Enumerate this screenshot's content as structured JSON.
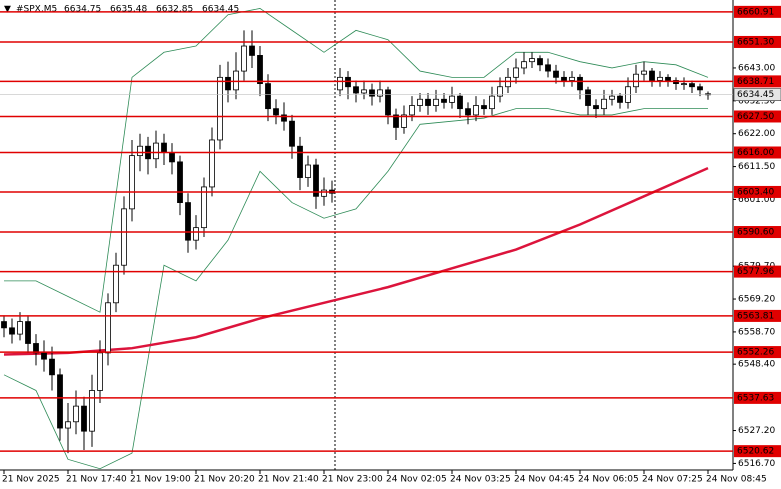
{
  "chart_data": {
    "type": "candlestick",
    "symbol": "#SPX,M5",
    "ohlc": [
      6634.75,
      6635.48,
      6632.85,
      6634.45
    ],
    "ylim": [
      6514.6,
      6664.7
    ],
    "yticks": [
      {
        "value": 6643,
        "label": "6643.00"
      },
      {
        "value": 6632.5,
        "label": "6632.50"
      },
      {
        "value": 6622,
        "label": "6622.00"
      },
      {
        "value": 6611.5,
        "label": "6611.50"
      },
      {
        "value": 6601,
        "label": "6601.00"
      },
      {
        "value": 6579.7,
        "label": "6579.70"
      },
      {
        "value": 6569.2,
        "label": "6569.20"
      },
      {
        "value": 6558.7,
        "label": "6558.70"
      },
      {
        "value": 6548.4,
        "label": "6548.40"
      },
      {
        "value": 6527.2,
        "label": "6527.20"
      },
      {
        "value": 6516.7,
        "label": "6516.70"
      }
    ],
    "levels": [
      {
        "value": 6660.91,
        "label": "6660.91"
      },
      {
        "value": 6651.3,
        "label": "6651.30"
      },
      {
        "value": 6638.71,
        "label": "6638.71"
      },
      {
        "value": 6627.5,
        "label": "6627.50"
      },
      {
        "value": 6616,
        "label": "6616.00"
      },
      {
        "value": 6603.4,
        "label": "6603.40"
      },
      {
        "value": 6590.6,
        "label": "6590.60"
      },
      {
        "value": 6577.96,
        "label": "6577.96"
      },
      {
        "value": 6563.81,
        "label": "6563.81"
      },
      {
        "value": 6552.26,
        "label": "6552.26"
      },
      {
        "value": 6537.63,
        "label": "6537.63"
      },
      {
        "value": 6520.62,
        "label": "6520.62"
      }
    ],
    "level_color": "#e00000",
    "x_labels": [
      "21 Nov 2025",
      "21 Nov 17:40",
      "21 Nov 19:00",
      "21 Nov 20:20",
      "21 Nov 21:40",
      "21 Nov 23:00",
      "24 Nov 02:05",
      "24 Nov 03:25",
      "24 Nov 04:45",
      "24 Nov 06:05",
      "24 Nov 07:25",
      "24 Nov 08:45"
    ],
    "candles": [
      [
        6562,
        6564,
        6557,
        6560
      ],
      [
        6560,
        6563,
        6555,
        6558
      ],
      [
        6558,
        6565,
        6556,
        6562
      ],
      [
        6562,
        6564,
        6552,
        6555
      ],
      [
        6555,
        6558,
        6548,
        6552
      ],
      [
        6552,
        6556,
        6546,
        6550
      ],
      [
        6550,
        6554,
        6540,
        6545
      ],
      [
        6545,
        6547,
        6524,
        6528
      ],
      [
        6528,
        6536,
        6520,
        6530
      ],
      [
        6530,
        6540,
        6526,
        6535
      ],
      [
        6535,
        6538,
        6521,
        6527
      ],
      [
        6527,
        6545,
        6522,
        6540
      ],
      [
        6540,
        6556,
        6536,
        6552
      ],
      [
        6552,
        6571,
        6548,
        6568
      ],
      [
        6568,
        6584,
        6565,
        6580
      ],
      [
        6580,
        6602,
        6577,
        6598
      ],
      [
        6598,
        6620,
        6594,
        6615
      ],
      [
        6615,
        6622,
        6610,
        6618
      ],
      [
        6618,
        6621,
        6609,
        6614
      ],
      [
        6614,
        6623,
        6611,
        6619
      ],
      [
        6619,
        6622,
        6612,
        6616
      ],
      [
        6616,
        6619,
        6609,
        6613
      ],
      [
        6613,
        6615,
        6596,
        6600
      ],
      [
        6600,
        6603,
        6584,
        6588
      ],
      [
        6588,
        6596,
        6585,
        6592
      ],
      [
        6592,
        6608,
        6589,
        6605
      ],
      [
        6605,
        6624,
        6602,
        6620
      ],
      [
        6620,
        6644,
        6617,
        6640
      ],
      [
        6640,
        6645,
        6632,
        6636
      ],
      [
        6636,
        6648,
        6633,
        6642
      ],
      [
        6642,
        6655,
        6639,
        6650
      ],
      [
        6650,
        6655,
        6643,
        6647
      ],
      [
        6647,
        6650,
        6634,
        6638
      ],
      [
        6638,
        6641,
        6626,
        6630
      ],
      [
        6630,
        6633,
        6625,
        6628
      ],
      [
        6628,
        6632,
        6623,
        6626
      ],
      [
        6626,
        6628,
        6614,
        6618
      ],
      [
        6618,
        6621,
        6604,
        6608
      ],
      [
        6608,
        6615,
        6605,
        6612
      ],
      [
        6612,
        6614,
        6598,
        6602
      ],
      [
        6602,
        6608,
        6599,
        6604
      ],
      [
        6604,
        6607,
        6600,
        6603
      ],
      [
        6636,
        6643,
        6634,
        6640
      ],
      [
        6640,
        6642,
        6633,
        6637
      ],
      [
        6637,
        6639,
        6632,
        6635
      ],
      [
        6635,
        6639,
        6633,
        6636
      ],
      [
        6636,
        6638,
        6631,
        6634
      ],
      [
        6634,
        6639,
        6632,
        6636
      ],
      [
        6636,
        6637,
        6625,
        6628
      ],
      [
        6628,
        6630,
        6620,
        6624
      ],
      [
        6624,
        6631,
        6622,
        6628
      ],
      [
        6628,
        6634,
        6626,
        6631
      ],
      [
        6631,
        6635,
        6629,
        6633
      ],
      [
        6633,
        6635,
        6628,
        6631
      ],
      [
        6631,
        6636,
        6629,
        6633
      ],
      [
        6633,
        6635,
        6630,
        6632
      ],
      [
        6632,
        6637,
        6630,
        6634
      ],
      [
        6634,
        6635,
        6627,
        6630
      ],
      [
        6630,
        6632,
        6625,
        6628
      ],
      [
        6628,
        6634,
        6626,
        6631
      ],
      [
        6631,
        6633,
        6628,
        6630
      ],
      [
        6630,
        6637,
        6628,
        6634
      ],
      [
        6634,
        6640,
        6632,
        6637
      ],
      [
        6637,
        6643,
        6635,
        6640
      ],
      [
        6640,
        6646,
        6638,
        6643
      ],
      [
        6643,
        6648,
        6641,
        6645
      ],
      [
        6645,
        6648,
        6643,
        6646
      ],
      [
        6646,
        6647,
        6642,
        6644
      ],
      [
        6644,
        6646,
        6640,
        6642
      ],
      [
        6642,
        6644,
        6638,
        6640
      ],
      [
        6640,
        6642,
        6637,
        6639
      ],
      [
        6639,
        6642,
        6637,
        6640
      ],
      [
        6640,
        6641,
        6633,
        6636
      ],
      [
        6636,
        6637,
        6628,
        6631
      ],
      [
        6631,
        6633,
        6627,
        6630
      ],
      [
        6630,
        6636,
        6628,
        6633
      ],
      [
        6633,
        6636,
        6631,
        6634
      ],
      [
        6634,
        6635,
        6630,
        6632
      ],
      [
        6632,
        6640,
        6630,
        6637
      ],
      [
        6637,
        6644,
        6635,
        6641
      ],
      [
        6641,
        6645,
        6639,
        6642
      ],
      [
        6642,
        6643,
        6637,
        6639
      ],
      [
        6639,
        6642,
        6637,
        6640
      ],
      [
        6640,
        6641,
        6637,
        6639
      ],
      [
        6639,
        6640,
        6636,
        6638
      ],
      [
        6638,
        6640,
        6636,
        6638
      ],
      [
        6638,
        6639,
        6635,
        6637
      ],
      [
        6637,
        6638,
        6634,
        6636
      ],
      [
        6634.75,
        6635.48,
        6632.85,
        6634.45
      ]
    ],
    "ma": {
      "color": "#dc143c",
      "at": [
        0,
        8,
        16,
        24,
        32,
        40,
        48,
        56,
        64,
        72,
        80,
        88
      ],
      "values": [
        6551.5,
        6552,
        6553.5,
        6557,
        6563,
        6568,
        6573,
        6579,
        6585,
        6593,
        6602,
        6611
      ]
    },
    "bands": {
      "color": "#2e8b57",
      "at": [
        0,
        4,
        8,
        12,
        16,
        20,
        24,
        28,
        32,
        36,
        40,
        44,
        48,
        52,
        56,
        60,
        64,
        68,
        72,
        76,
        80,
        84,
        88
      ],
      "upper": [
        6575,
        6575,
        6570,
        6565,
        6640,
        6648,
        6650,
        6660,
        6662,
        6655,
        6648,
        6655,
        6652,
        6642,
        6640,
        6640,
        6648,
        6648,
        6645,
        6643,
        6645,
        6644,
        6640
      ],
      "lower": [
        6545,
        6540,
        6518,
        6515,
        6520,
        6580,
        6575,
        6588,
        6610,
        6600,
        6595,
        6598,
        6610,
        6625,
        6626,
        6627,
        6630,
        6630,
        6628,
        6628,
        6630,
        6630,
        6630
      ]
    }
  }
}
